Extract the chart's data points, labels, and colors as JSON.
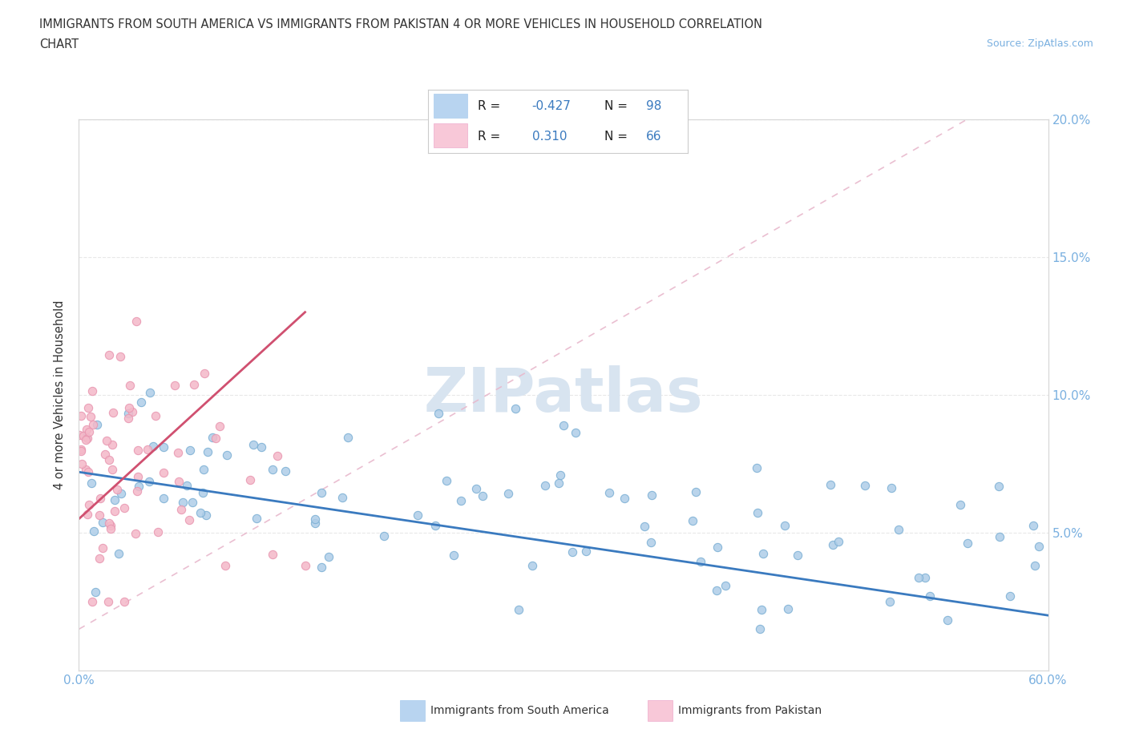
{
  "title_line1": "IMMIGRANTS FROM SOUTH AMERICA VS IMMIGRANTS FROM PAKISTAN 4 OR MORE VEHICLES IN HOUSEHOLD CORRELATION",
  "title_line2": "CHART",
  "source_text": "Source: ZipAtlas.com",
  "ylabel": "4 or more Vehicles in Household",
  "xlim": [
    0.0,
    0.6
  ],
  "ylim": [
    0.0,
    0.2
  ],
  "R_blue": -0.427,
  "N_blue": 98,
  "R_pink": 0.31,
  "N_pink": 66,
  "blue_scatter_color": "#aecde8",
  "pink_scatter_color": "#f4b8c8",
  "blue_edge_color": "#7bafd4",
  "pink_edge_color": "#e896b0",
  "trend_blue_color": "#3a7abf",
  "trend_pink_color": "#d05070",
  "diag_line_color": "#e8b8cc",
  "background_color": "#ffffff",
  "grid_color": "#e8e8e8",
  "watermark_color": "#d8e4f0",
  "legend_box_color_blue": "#b8d4f0",
  "legend_box_color_pink": "#f8c8d8",
  "legend_R_color": "#3a7abf",
  "legend_N_color": "#3a7abf",
  "tick_color": "#7ab0e0",
  "title_color": "#333333",
  "ylabel_color": "#333333",
  "source_color": "#7ab0e0"
}
